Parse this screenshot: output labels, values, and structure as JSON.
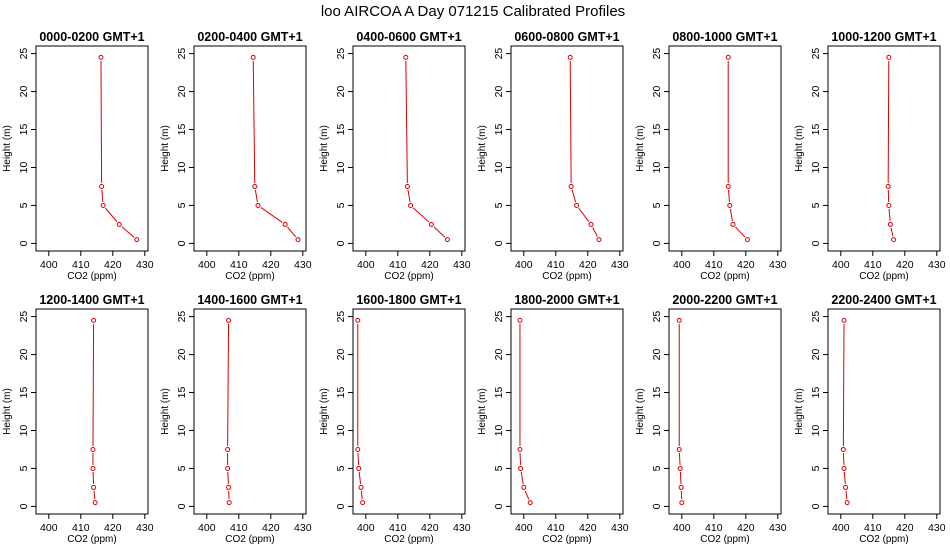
{
  "figure_title": "loo AIRCOA A  Day 071215  Calibrated Profiles",
  "colors": {
    "profile": "#dd0000",
    "axes": "#000000",
    "background": "#ffffff"
  },
  "chart_data": [
    {
      "type": "line",
      "title": "0000-0200 GMT+1",
      "xlabel": "CO2 (ppm)",
      "ylabel": "Height (m)",
      "xlim": [
        396,
        431
      ],
      "ylim": [
        -1,
        26
      ],
      "xticks": [
        400,
        410,
        420,
        430
      ],
      "yticks": [
        0,
        5,
        10,
        15,
        20,
        25
      ],
      "series": [
        {
          "x": [
            427.5,
            422.0,
            417.0,
            416.5,
            416.3
          ],
          "y": [
            0.5,
            2.5,
            5,
            7.5,
            24.5
          ]
        }
      ]
    },
    {
      "type": "line",
      "title": "0200-0400 GMT+1",
      "xlabel": "CO2 (ppm)",
      "ylabel": "Height (m)",
      "xlim": [
        396,
        431
      ],
      "ylim": [
        -1,
        26
      ],
      "xticks": [
        400,
        410,
        420,
        430
      ],
      "yticks": [
        0,
        5,
        10,
        15,
        20,
        25
      ],
      "series": [
        {
          "x": [
            428.5,
            424.5,
            416.0,
            415.0,
            414.5
          ],
          "y": [
            0.5,
            2.5,
            5,
            7.5,
            24.5
          ]
        }
      ]
    },
    {
      "type": "line",
      "title": "0400-0600 GMT+1",
      "xlabel": "CO2 (ppm)",
      "ylabel": "Height (m)",
      "xlim": [
        396,
        431
      ],
      "ylim": [
        -1,
        26
      ],
      "xticks": [
        400,
        410,
        420,
        430
      ],
      "yticks": [
        0,
        5,
        10,
        15,
        20,
        25
      ],
      "series": [
        {
          "x": [
            425.5,
            420.5,
            414.0,
            413.0,
            412.5
          ],
          "y": [
            0.5,
            2.5,
            5,
            7.5,
            24.5
          ]
        }
      ]
    },
    {
      "type": "line",
      "title": "0600-0800 GMT+1",
      "xlabel": "CO2 (ppm)",
      "ylabel": "Height (m)",
      "xlim": [
        396,
        431
      ],
      "ylim": [
        -1,
        26
      ],
      "xticks": [
        400,
        410,
        420,
        430
      ],
      "yticks": [
        0,
        5,
        10,
        15,
        20,
        25
      ],
      "series": [
        {
          "x": [
            423.5,
            421.0,
            416.5,
            414.8,
            414.5
          ],
          "y": [
            0.5,
            2.5,
            5,
            7.5,
            24.5
          ]
        }
      ]
    },
    {
      "type": "line",
      "title": "0800-1000 GMT+1",
      "xlabel": "CO2 (ppm)",
      "ylabel": "Height (m)",
      "xlim": [
        396,
        431
      ],
      "ylim": [
        -1,
        26
      ],
      "xticks": [
        400,
        410,
        420,
        430
      ],
      "yticks": [
        0,
        5,
        10,
        15,
        20,
        25
      ],
      "series": [
        {
          "x": [
            420.5,
            416.0,
            415.0,
            414.5,
            414.5
          ],
          "y": [
            0.5,
            2.5,
            5,
            7.5,
            24.5
          ]
        }
      ]
    },
    {
      "type": "line",
      "title": "1000-1200 GMT+1",
      "xlabel": "CO2 (ppm)",
      "ylabel": "Height (m)",
      "xlim": [
        396,
        431
      ],
      "ylim": [
        -1,
        26
      ],
      "xticks": [
        400,
        410,
        420,
        430
      ],
      "yticks": [
        0,
        5,
        10,
        15,
        20,
        25
      ],
      "series": [
        {
          "x": [
            416.5,
            415.5,
            415.0,
            414.8,
            415.0
          ],
          "y": [
            0.5,
            2.5,
            5,
            7.5,
            24.5
          ]
        }
      ]
    },
    {
      "type": "line",
      "title": "1200-1400 GMT+1",
      "xlabel": "CO2 (ppm)",
      "ylabel": "Height (m)",
      "xlim": [
        396,
        431
      ],
      "ylim": [
        -1,
        26
      ],
      "xticks": [
        400,
        410,
        420,
        430
      ],
      "yticks": [
        0,
        5,
        10,
        15,
        20,
        25
      ],
      "series": [
        {
          "x": [
            414.5,
            414.0,
            413.8,
            413.8,
            414.0
          ],
          "y": [
            0.5,
            2.5,
            5,
            7.5,
            24.5
          ]
        }
      ]
    },
    {
      "type": "line",
      "title": "1400-1600 GMT+1",
      "xlabel": "CO2 (ppm)",
      "ylabel": "Height (m)",
      "xlim": [
        396,
        431
      ],
      "ylim": [
        -1,
        26
      ],
      "xticks": [
        400,
        410,
        420,
        430
      ],
      "yticks": [
        0,
        5,
        10,
        15,
        20,
        25
      ],
      "series": [
        {
          "x": [
            407.0,
            406.8,
            406.5,
            406.5,
            406.8
          ],
          "y": [
            0.5,
            2.5,
            5,
            7.5,
            24.5
          ]
        }
      ]
    },
    {
      "type": "line",
      "title": "1600-1800 GMT+1",
      "xlabel": "CO2 (ppm)",
      "ylabel": "Height (m)",
      "xlim": [
        396,
        431
      ],
      "ylim": [
        -1,
        26
      ],
      "xticks": [
        400,
        410,
        420,
        430
      ],
      "yticks": [
        0,
        5,
        10,
        15,
        20,
        25
      ],
      "series": [
        {
          "x": [
            399.0,
            398.5,
            397.8,
            397.5,
            397.5
          ],
          "y": [
            0.5,
            2.5,
            5,
            7.5,
            24.5
          ]
        }
      ]
    },
    {
      "type": "line",
      "title": "1800-2000 GMT+1",
      "xlabel": "CO2 (ppm)",
      "ylabel": "Height (m)",
      "xlim": [
        396,
        431
      ],
      "ylim": [
        -1,
        26
      ],
      "xticks": [
        400,
        410,
        420,
        430
      ],
      "yticks": [
        0,
        5,
        10,
        15,
        20,
        25
      ],
      "series": [
        {
          "x": [
            402.0,
            400.0,
            399.0,
            398.8,
            398.8
          ],
          "y": [
            0.5,
            2.5,
            5,
            7.5,
            24.5
          ]
        }
      ]
    },
    {
      "type": "line",
      "title": "2000-2200 GMT+1",
      "xlabel": "CO2 (ppm)",
      "ylabel": "Height (m)",
      "xlim": [
        396,
        431
      ],
      "ylim": [
        -1,
        26
      ],
      "xticks": [
        400,
        410,
        420,
        430
      ],
      "yticks": [
        0,
        5,
        10,
        15,
        20,
        25
      ],
      "series": [
        {
          "x": [
            400.0,
            399.8,
            399.5,
            399.2,
            399.2
          ],
          "y": [
            0.5,
            2.5,
            5,
            7.5,
            24.5
          ]
        }
      ]
    },
    {
      "type": "line",
      "title": "2200-2400 GMT+1",
      "xlabel": "CO2 (ppm)",
      "ylabel": "Height (m)",
      "xlim": [
        396,
        431
      ],
      "ylim": [
        -1,
        26
      ],
      "xticks": [
        400,
        410,
        420,
        430
      ],
      "yticks": [
        0,
        5,
        10,
        15,
        20,
        25
      ],
      "series": [
        {
          "x": [
            402.0,
            401.5,
            401.0,
            400.8,
            401.0
          ],
          "y": [
            0.5,
            2.5,
            5,
            7.5,
            24.5
          ]
        }
      ]
    }
  ]
}
